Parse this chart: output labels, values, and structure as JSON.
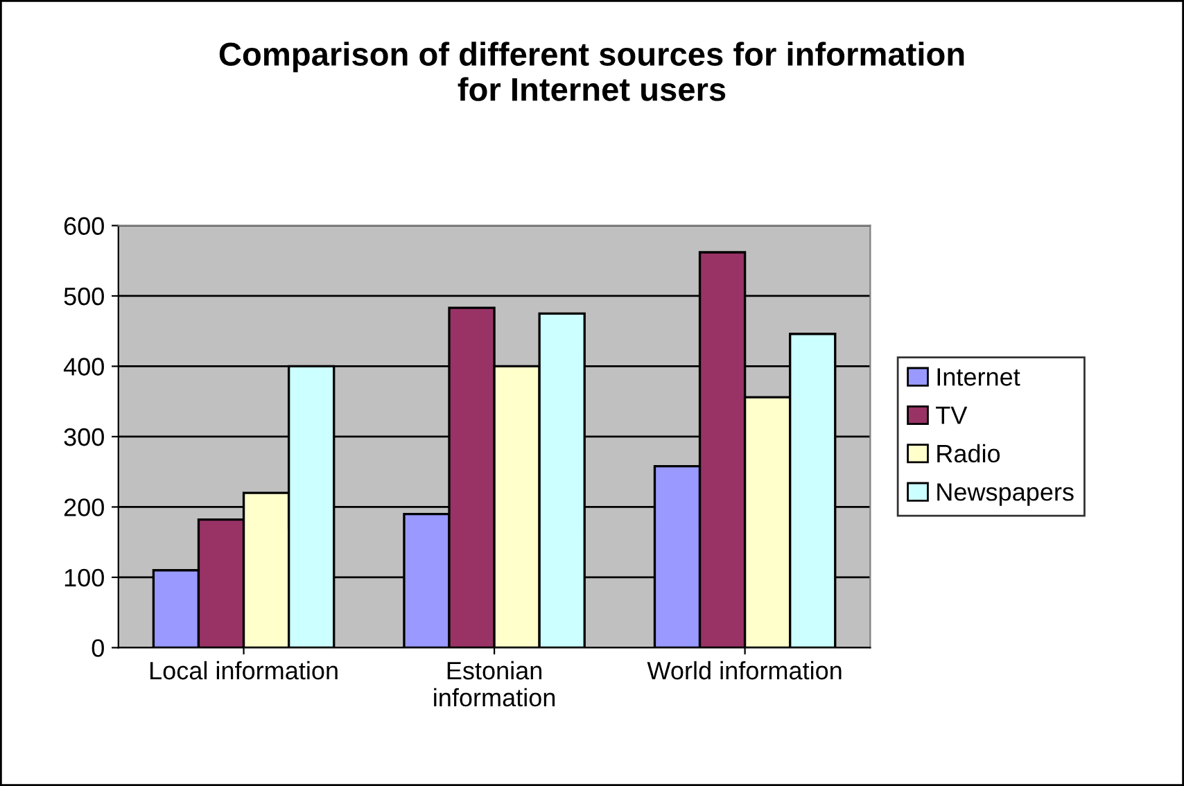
{
  "chart_data": {
    "type": "bar",
    "title": "Comparison of different sources for information\nfor Internet users",
    "categories": [
      "Local information",
      "Estonian\ninformation",
      "World information"
    ],
    "series": [
      {
        "name": "Internet",
        "color": "#9999ff",
        "values": [
          110,
          190,
          258
        ]
      },
      {
        "name": "TV",
        "color": "#993366",
        "values": [
          182,
          483,
          562
        ]
      },
      {
        "name": "Radio",
        "color": "#ffffcc",
        "values": [
          220,
          400,
          356
        ]
      },
      {
        "name": "Newspapers",
        "color": "#ccffff",
        "values": [
          400,
          475,
          446
        ]
      }
    ],
    "ylim": [
      0,
      600
    ],
    "yticks": [
      0,
      100,
      200,
      300,
      400,
      500,
      600
    ],
    "grid": "y",
    "legend": "right"
  }
}
